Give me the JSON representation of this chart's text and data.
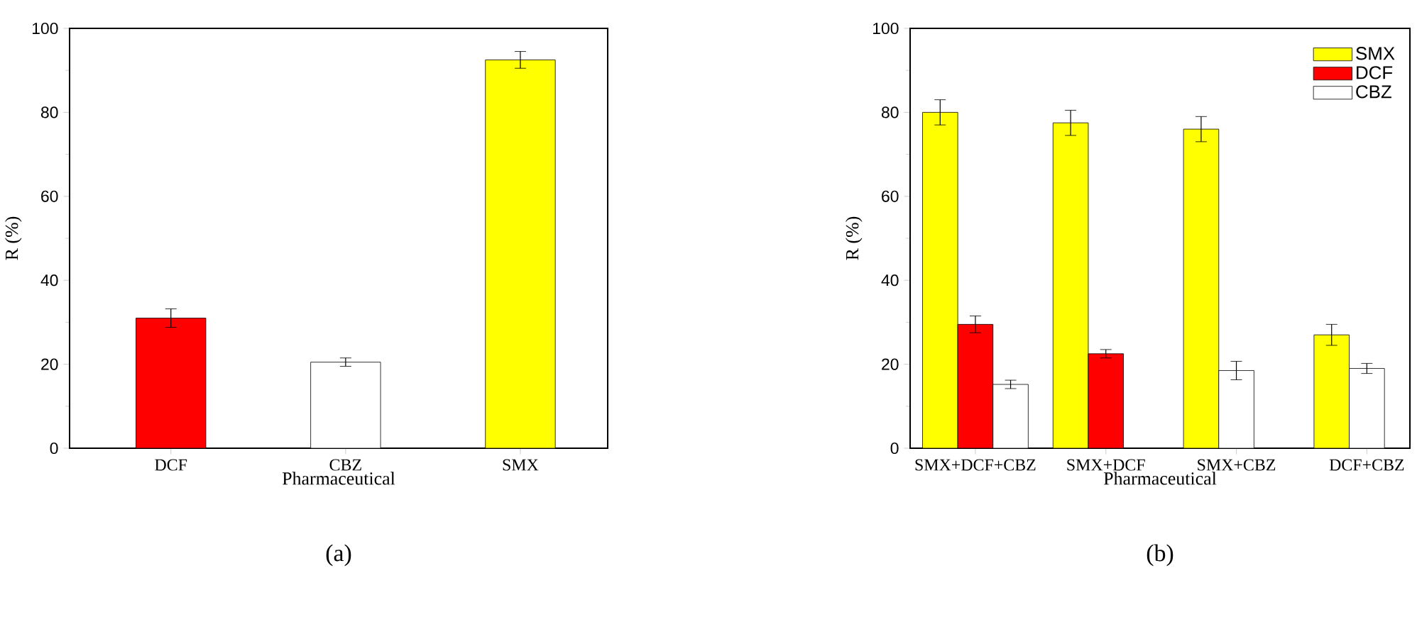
{
  "chart_data": [
    {
      "type": "bar",
      "xlabel": "Pharmaceutical",
      "ylabel": "R (%)",
      "categories": [
        "DCF",
        "CBZ",
        "SMX"
      ],
      "values": [
        31,
        20.5,
        92.5
      ],
      "colors": [
        "#ff0000",
        "#ffffff",
        "#ffff00"
      ],
      "errors": [
        2.2,
        1,
        2
      ],
      "ylim": [
        0,
        100
      ],
      "yticks": [
        0,
        20,
        40,
        60,
        80,
        100
      ],
      "grid": false,
      "legend": false,
      "annotations": [
        "(a)"
      ]
    },
    {
      "type": "bar",
      "xlabel": "Pharmaceutical",
      "ylabel": "R (%)",
      "categories": [
        "SMX+DCF+CBZ",
        "SMX+DCF",
        "SMX+CBZ",
        "DCF+CBZ"
      ],
      "series": [
        {
          "name": "SMX",
          "color": "#ffff00",
          "values": [
            80,
            77.5,
            76,
            27
          ],
          "errors": [
            3,
            3,
            3,
            2.5
          ]
        },
        {
          "name": "DCF",
          "color": "#ff0000",
          "values": [
            29.5,
            22.5,
            null,
            null
          ],
          "errors": [
            2,
            1,
            null,
            null
          ]
        },
        {
          "name": "CBZ",
          "color": "#ffffff",
          "values": [
            15.2,
            null,
            18.5,
            19
          ],
          "errors": [
            1,
            null,
            2.2,
            1.2
          ]
        }
      ],
      "ylim": [
        0,
        100
      ],
      "yticks": [
        0,
        20,
        40,
        60,
        80,
        100
      ],
      "grid": false,
      "legend": "top right",
      "annotations": [
        "(b)"
      ]
    }
  ]
}
